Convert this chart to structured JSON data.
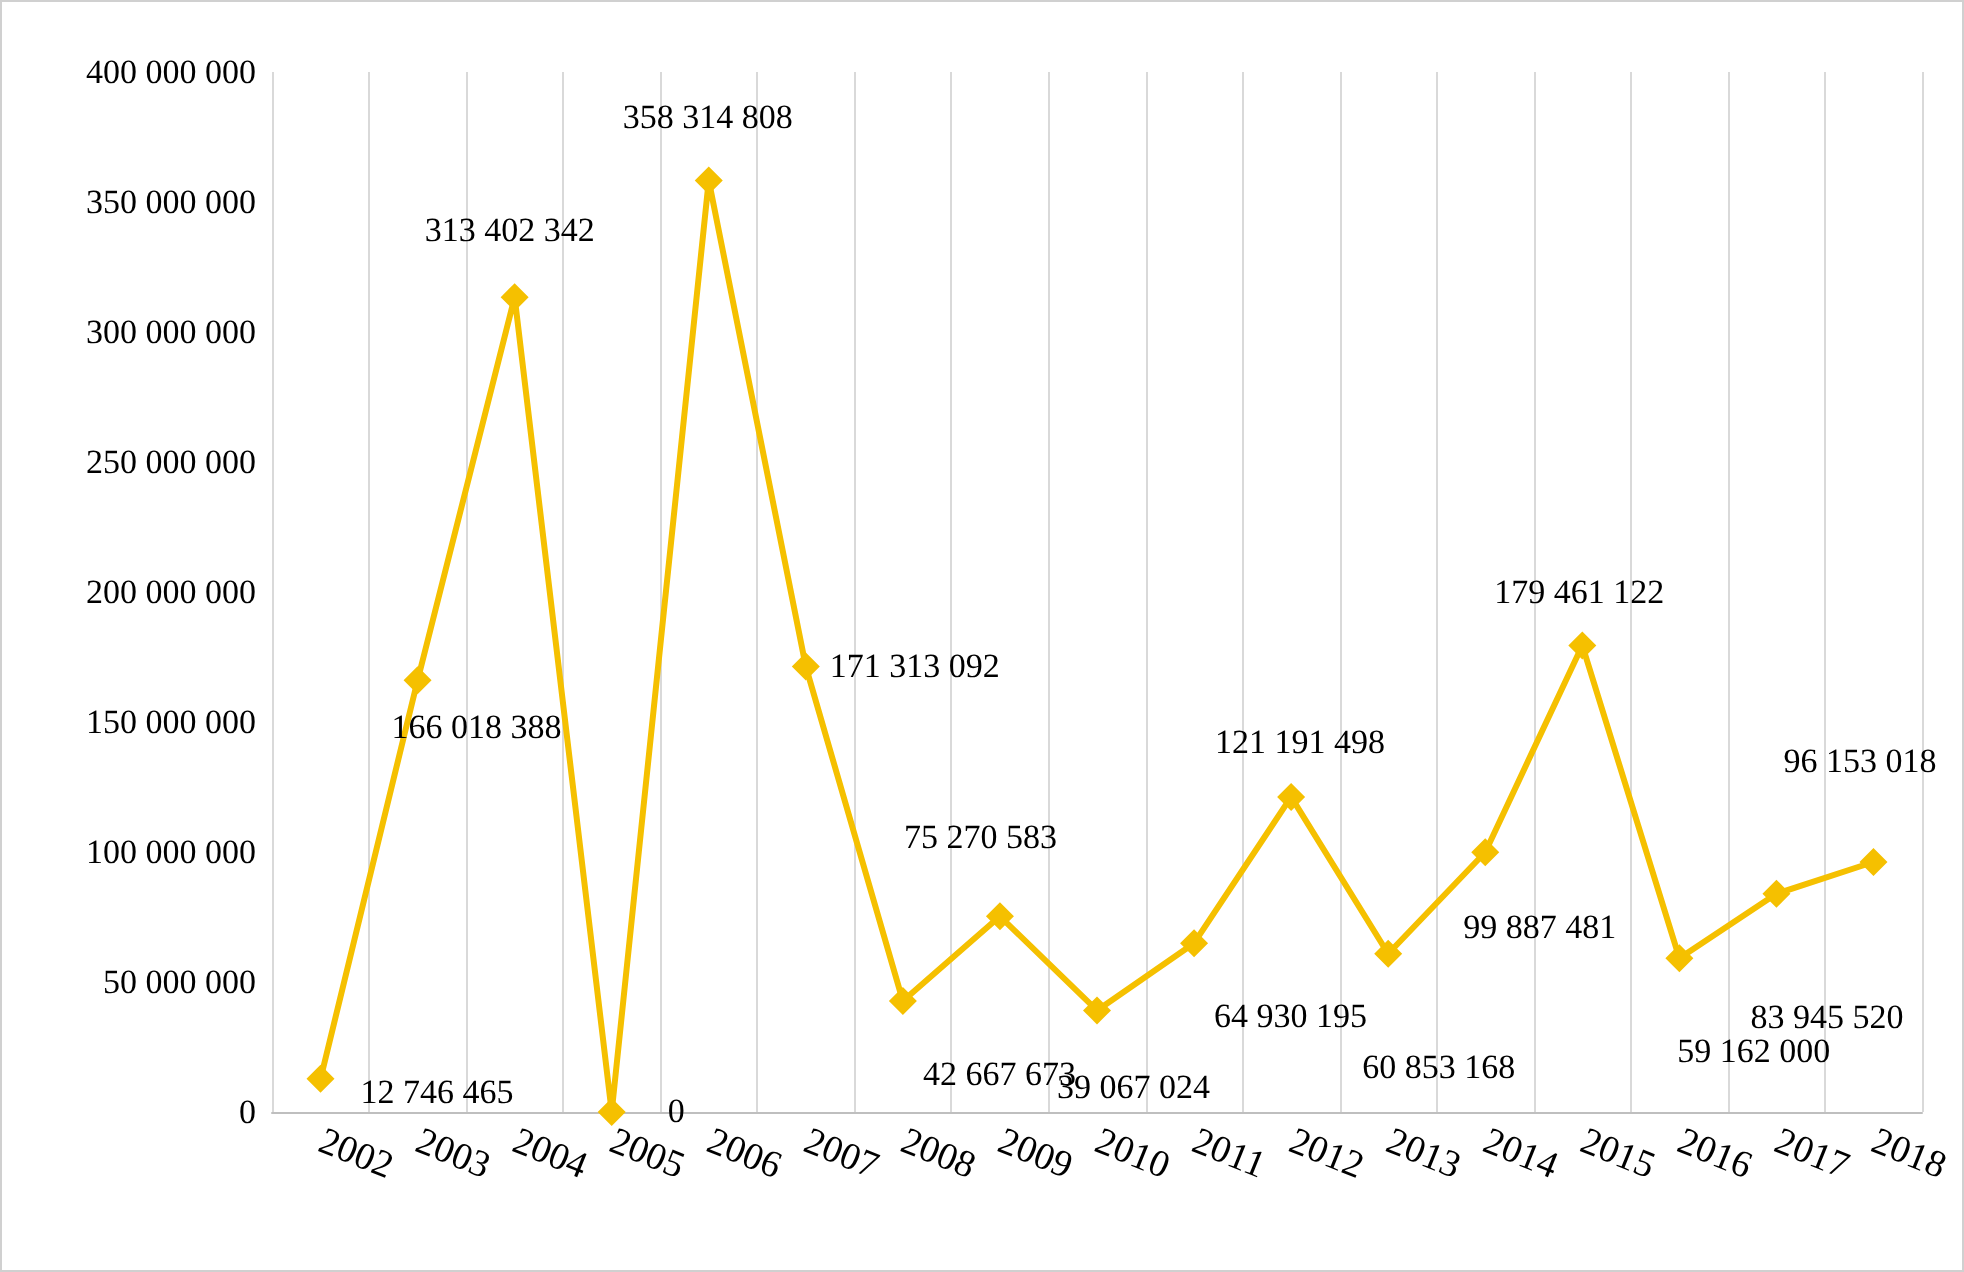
{
  "chart_data": {
    "type": "line",
    "categories": [
      "2002",
      "2003",
      "2004",
      "2005",
      "2006",
      "2007",
      "2008",
      "2009",
      "2010",
      "2011",
      "2012",
      "2013",
      "2014",
      "2015",
      "2016",
      "2017",
      "2018"
    ],
    "series": [
      {
        "color": "#f5c000",
        "values": [
          12746465,
          166018388,
          313402342,
          0,
          358314808,
          171313092,
          42667673,
          75270583,
          39067024,
          64930195,
          121191498,
          60853168,
          99887481,
          179461122,
          59162000,
          83945520,
          96153018
        ],
        "value_labels": [
          "12 746 465",
          "166 018 388",
          "313 402 342",
          "0",
          "358 314 808",
          "171 313 092",
          "42 667 673",
          "75 270 583",
          "39 067 024",
          "64 930 195",
          "121 191 498",
          "60 853 168",
          "99 887 481",
          "179 461 122",
          "59 162 000",
          "83 945 520",
          "96 153 018"
        ]
      }
    ],
    "ylim": [
      0,
      400000000
    ],
    "yticks": [
      0,
      {
        "value": 50000000,
        "label": "50 000 000"
      },
      {
        "value": 100000000,
        "label": "100 000 000"
      },
      {
        "value": 150000000,
        "label": "150 000 000"
      },
      {
        "value": 200000000,
        "label": "200 000 000"
      },
      {
        "value": 250000000,
        "label": "250 000 000"
      },
      {
        "value": 300000000,
        "label": "300 000 000"
      },
      {
        "value": 350000000,
        "label": "350 000 000"
      },
      {
        "value": 400000000,
        "label": "400 000 000"
      }
    ],
    "grid": "x",
    "marker": "diamond",
    "line_style": "solid"
  }
}
